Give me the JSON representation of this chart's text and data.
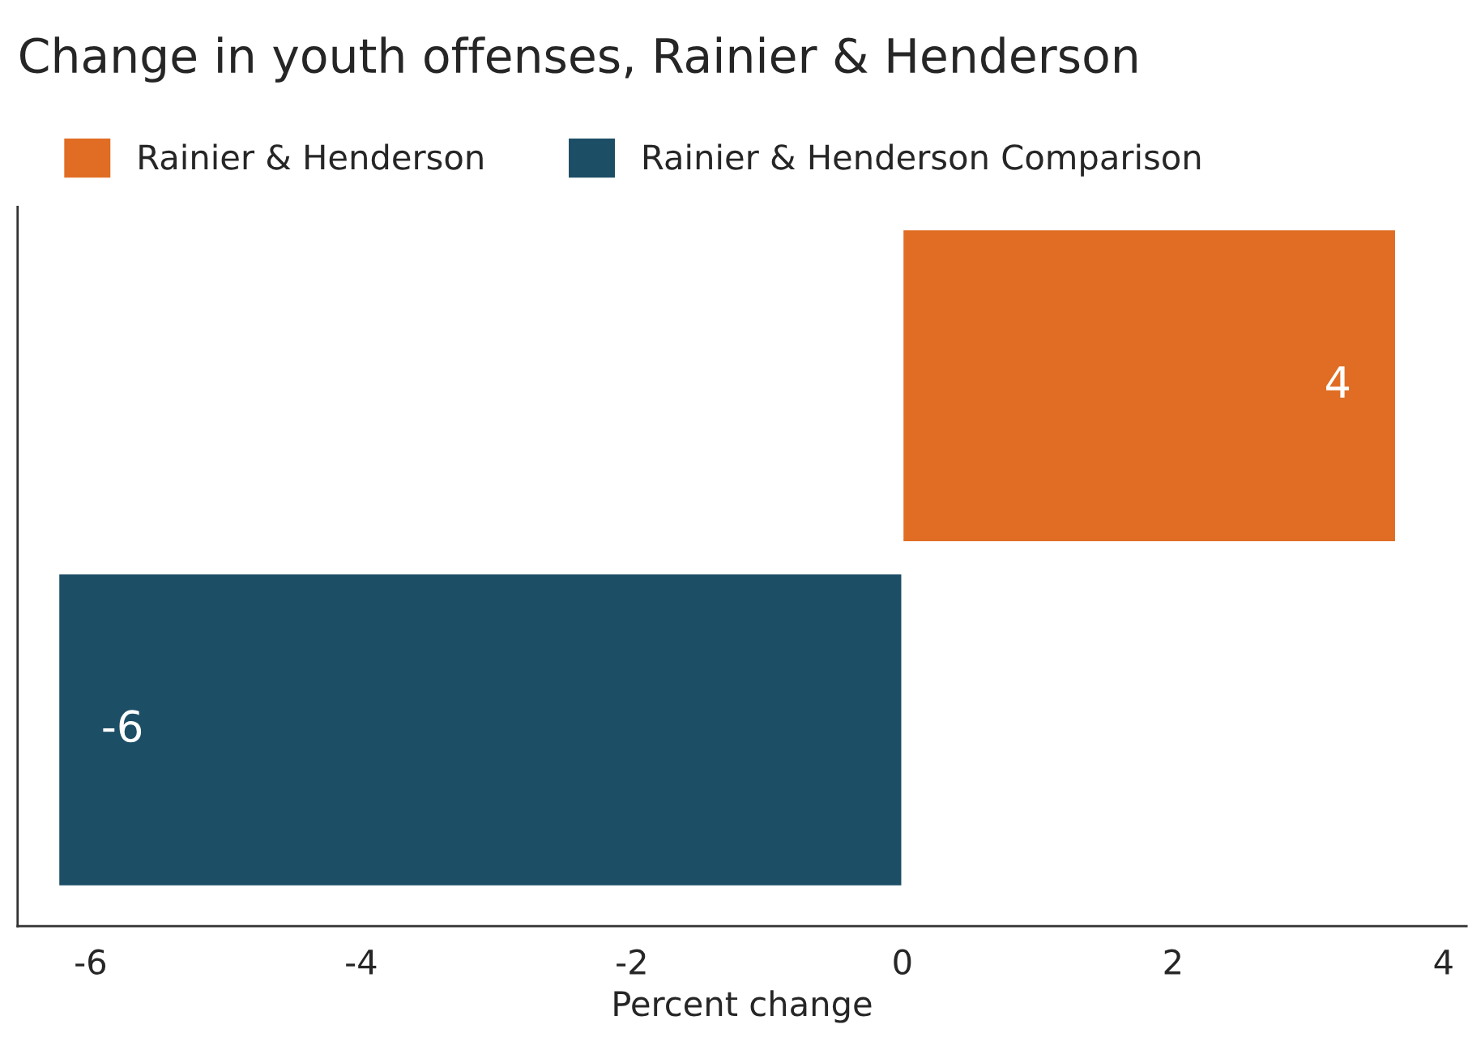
{
  "chart_data": {
    "type": "bar",
    "orientation": "horizontal",
    "title": "Change in youth offenses, Rainier & Henderson",
    "xlabel": "Percent change",
    "categories": [
      null,
      null
    ],
    "series": [
      {
        "name": "Rainier & Henderson",
        "color": "#e06d23",
        "values": [
          3.65,
          null
        ],
        "value_labels": [
          "4",
          null
        ]
      },
      {
        "name": "Rainier & Henderson Comparison",
        "color": "#1c4e66",
        "values": [
          null,
          -6.24
        ],
        "value_labels": [
          null,
          "-6"
        ]
      }
    ],
    "xlim": [
      -6.54,
      4.17
    ],
    "xticks": [
      -6,
      -4,
      -2,
      0,
      2,
      4
    ],
    "grid": false,
    "legend": "top left"
  }
}
